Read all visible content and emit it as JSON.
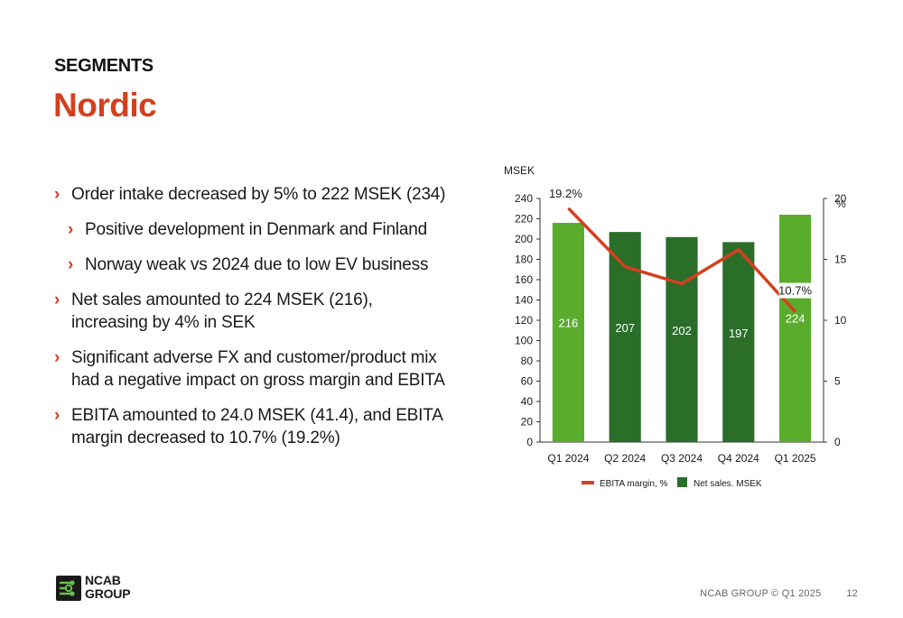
{
  "header": {
    "section": "SEGMENTS",
    "title": "Nordic"
  },
  "bullets": [
    {
      "level": 1,
      "text": "Order intake decreased by 5% to 222 MSEK (234)"
    },
    {
      "level": 2,
      "text": "Positive development in Denmark and Finland"
    },
    {
      "level": 2,
      "text": "Norway weak vs 2024 due to low EV business"
    },
    {
      "level": 1,
      "text": "Net sales amounted to 224 MSEK (216), increasing by 4% in SEK"
    },
    {
      "level": 1,
      "text": "Significant adverse FX and customer/product mix had a negative impact on gross margin and EBITA"
    },
    {
      "level": 1,
      "text": "EBITA amounted to 24.0 MSEK (41.4), and EBITA margin decreased to 10.7% (19.2%)"
    }
  ],
  "chart_data": {
    "type": "bar",
    "categories": [
      "Q1 2024",
      "Q2 2024",
      "Q3 2024",
      "Q4 2024",
      "Q1 2025"
    ],
    "left_axis_label": "MSEK",
    "right_axis_label": "%",
    "ylim": [
      0,
      240
    ],
    "yticks": [
      0,
      20,
      40,
      60,
      80,
      100,
      120,
      140,
      160,
      180,
      200,
      220,
      240
    ],
    "y2lim": [
      0,
      20
    ],
    "y2ticks": [
      0,
      5,
      10,
      15,
      20
    ],
    "series": [
      {
        "name": "Net sales. MSEK",
        "kind": "bar",
        "axis": "left",
        "values": [
          216,
          207,
          202,
          197,
          224
        ],
        "colors": [
          "#5aac2c",
          "#2a6e2a",
          "#2a6e2a",
          "#2a6e2a",
          "#5aac2c"
        ]
      },
      {
        "name": "EBITA margin, %",
        "kind": "line",
        "axis": "right",
        "color": "#d4401f",
        "values": [
          19.2,
          14.4,
          13.0,
          15.8,
          10.7
        ],
        "labels": [
          "19.2%",
          "",
          "",
          "",
          "10.7%"
        ]
      }
    ],
    "legend": "bottom-center"
  },
  "footer": {
    "copyright": "NCAB GROUP © Q1 2025",
    "page": "12",
    "logo_line1": "NCAB",
    "logo_line2": "GROUP"
  }
}
